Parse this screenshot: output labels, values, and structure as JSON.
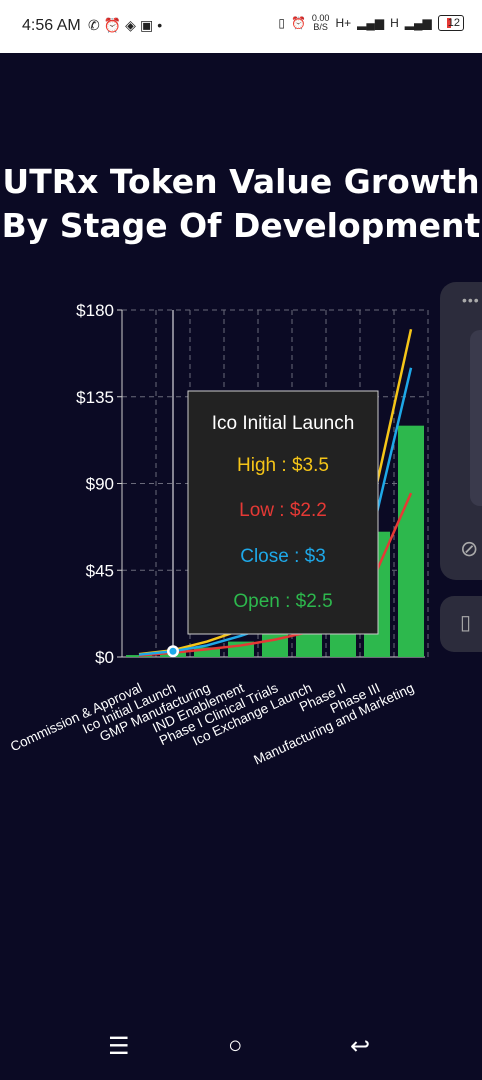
{
  "status_bar": {
    "time": "4:56 AM",
    "speed_value": "0.00",
    "speed_unit": "B/S",
    "network_1": "H+",
    "network_2": "H",
    "battery": "12",
    "left_icons": [
      "whatsapp-icon",
      "alarm-icon",
      "binance-icon",
      "linkedin-icon",
      "dot-icon"
    ],
    "right_icons": [
      "vibrate-icon",
      "alarm-icon",
      "signal-icon",
      "signal-icon",
      "battery-icon"
    ]
  },
  "title_lines": [
    "UTRx Token Value Growth",
    "By Stage Of Development"
  ],
  "tooltip": {
    "title": "Ico Initial Launch",
    "high": "High : $3.5",
    "low": "Low : $2.2",
    "close": "Close : $3",
    "open": "Open : $2.5"
  },
  "colors": {
    "background": "#0b0a24",
    "high": "#f5c518",
    "low": "#e53935",
    "close": "#1ea8e8",
    "open": "#2db84d",
    "tooltip_bg": "#222222"
  },
  "chart_data": {
    "type": "bar",
    "categories": [
      "Commission & Approval",
      "Ico Initial Launch",
      "GMP Manufacturing",
      "IND Enablement",
      "Phase I Clinical Trials",
      "Ico Exchange Launch",
      "Phase II",
      "Phase III",
      "Manufacturing and Marketing"
    ],
    "series": [
      {
        "name": "Open",
        "type": "bar",
        "values": [
          1,
          2.5,
          5,
          8,
          12,
          18,
          25,
          65,
          120
        ]
      },
      {
        "name": "High",
        "type": "line",
        "values": [
          1.5,
          3.5,
          8,
          14,
          22,
          32,
          48,
          90,
          170
        ]
      },
      {
        "name": "Low",
        "type": "line",
        "values": [
          0.8,
          2.2,
          4,
          6,
          9,
          13,
          20,
          45,
          85
        ]
      },
      {
        "name": "Close",
        "type": "line",
        "values": [
          1.2,
          3,
          6,
          11,
          17,
          26,
          38,
          75,
          150
        ]
      }
    ],
    "y_ticks": [
      "$0",
      "$45",
      "$90",
      "$135",
      "$180"
    ],
    "ylim": [
      0,
      180
    ],
    "grid": true,
    "highlighted_category": "Ico Initial Launch"
  },
  "nav_bar": {
    "recent": "☰",
    "home": "○",
    "back": "↩"
  }
}
